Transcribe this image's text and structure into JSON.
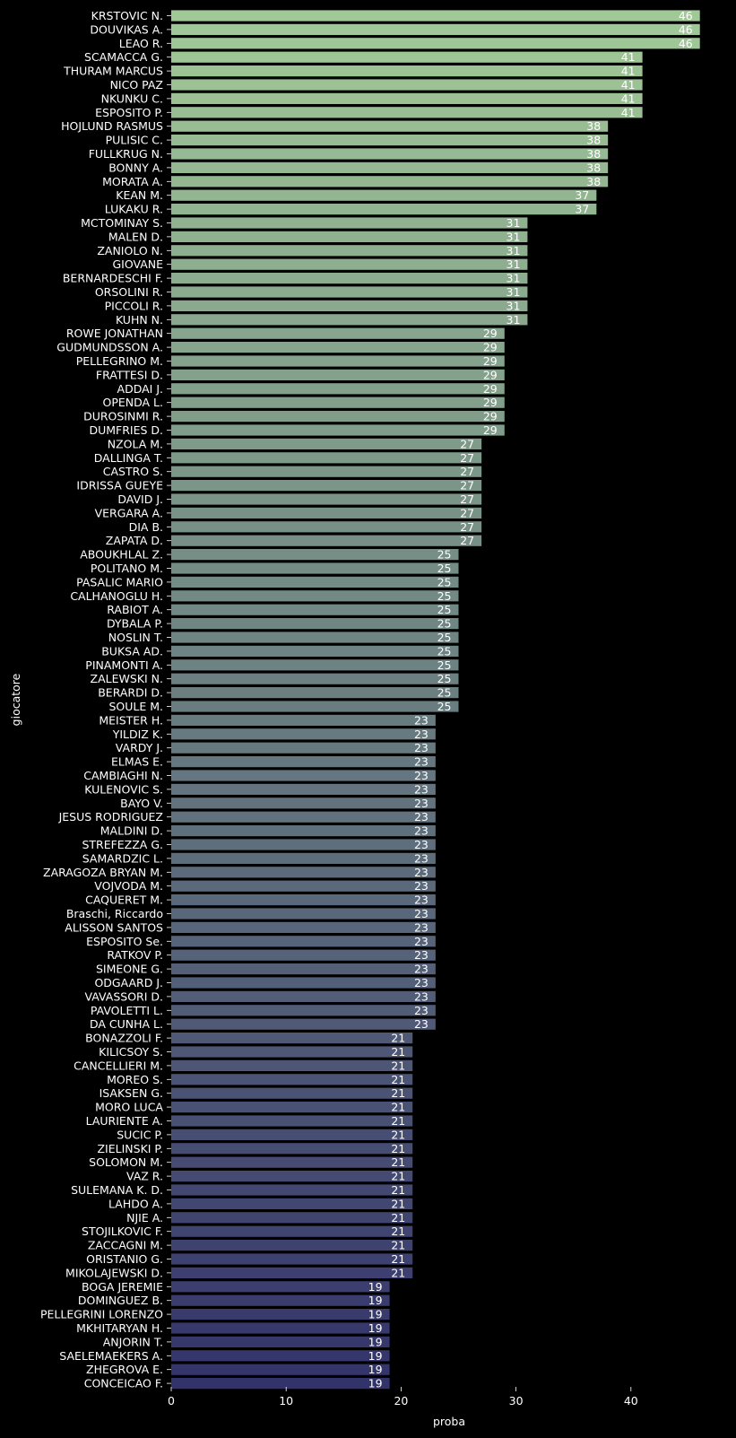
{
  "chart_data": {
    "type": "bar",
    "orientation": "horizontal",
    "title": "",
    "xlabel": "proba",
    "ylabel": "giocatore",
    "xlim": [
      0,
      48
    ],
    "xticks": [
      "0",
      "10",
      "20",
      "30",
      "40"
    ],
    "grid": false,
    "legend": "none",
    "palette": {
      "start": "#a1c997",
      "end": "#33336b"
    },
    "categories": [
      "KRSTOVIC N.",
      "DOUVIKAS A.",
      "LEAO R.",
      "SCAMACCA G.",
      "THURAM MARCUS",
      "NICO PAZ",
      "NKUNKU C.",
      "ESPOSITO P.",
      "HOJLUND RASMUS",
      "PULISIC C.",
      "FULLKRUG N.",
      "BONNY A.",
      "MORATA A.",
      "KEAN M.",
      "LUKAKU R.",
      "MCTOMINAY S.",
      "MALEN D.",
      "ZANIOLO N.",
      "GIOVANE",
      "BERNARDESCHI F.",
      "ORSOLINI R.",
      "PICCOLI R.",
      "KUHN N.",
      "ROWE JONATHAN",
      "GUDMUNDSSON A.",
      "PELLEGRINO M.",
      "FRATTESI D.",
      "ADDAI J.",
      "OPENDA L.",
      "DUROSINMI R.",
      "DUMFRIES D.",
      "NZOLA M.",
      "DALLINGA T.",
      "CASTRO S.",
      "IDRISSA GUEYE",
      "DAVID J.",
      "VERGARA A.",
      "DIA B.",
      "ZAPATA D.",
      "ABOUKHLAL Z.",
      "POLITANO M.",
      "PASALIC MARIO",
      "CALHANOGLU H.",
      "RABIOT A.",
      "DYBALA P.",
      "NOSLIN T.",
      "BUKSA AD.",
      "PINAMONTI A.",
      "ZALEWSKI N.",
      "BERARDI D.",
      "SOULE M.",
      "MEISTER H.",
      "YILDIZ K.",
      "VARDY J.",
      "ELMAS E.",
      "CAMBIAGHI N.",
      "KULENOVIC S.",
      "BAYO V.",
      "JESUS RODRIGUEZ",
      "MALDINI D.",
      "STREFEZZA G.",
      "SAMARDZIC L.",
      "ZARAGOZA BRYAN M.",
      "VOJVODA M.",
      "CAQUERET M.",
      "Braschi, Riccardo",
      "ALISSON SANTOS",
      "ESPOSITO Se.",
      "RATKOV P.",
      "SIMEONE G.",
      "ODGAARD J.",
      "VAVASSORI D.",
      "PAVOLETTI L.",
      "DA CUNHA L.",
      "BONAZZOLI F.",
      "KILICSOY S.",
      "CANCELLIERI M.",
      "MOREO S.",
      "ISAKSEN G.",
      "MORO LUCA",
      "LAURIENTE A.",
      "SUCIC P.",
      "ZIELINSKI P.",
      "SOLOMON M.",
      "VAZ R.",
      "SULEMANA K. D.",
      "LAHDO A.",
      "NJIE A.",
      "STOJILKOVIC F.",
      "ZACCAGNI M.",
      "ORISTANIO G.",
      "MIKOLAJEWSKI D.",
      "BOGA JEREMIE",
      "DOMINGUEZ B.",
      "PELLEGRINI LORENZO",
      "MKHITARYAN H.",
      "ANJORIN T.",
      "SAELEMAEKERS A.",
      "ZHEGROVA E.",
      "CONCEICAO F."
    ],
    "values": [
      46,
      46,
      46,
      41,
      41,
      41,
      41,
      41,
      38,
      38,
      38,
      38,
      38,
      37,
      37,
      31,
      31,
      31,
      31,
      31,
      31,
      31,
      31,
      29,
      29,
      29,
      29,
      29,
      29,
      29,
      29,
      27,
      27,
      27,
      27,
      27,
      27,
      27,
      27,
      25,
      25,
      25,
      25,
      25,
      25,
      25,
      25,
      25,
      25,
      25,
      25,
      23,
      23,
      23,
      23,
      23,
      23,
      23,
      23,
      23,
      23,
      23,
      23,
      23,
      23,
      23,
      23,
      23,
      23,
      23,
      23,
      23,
      23,
      23,
      21,
      21,
      21,
      21,
      21,
      21,
      21,
      21,
      21,
      21,
      21,
      21,
      21,
      21,
      21,
      21,
      21,
      21,
      19,
      19,
      19,
      19,
      19,
      19,
      19,
      19
    ]
  }
}
